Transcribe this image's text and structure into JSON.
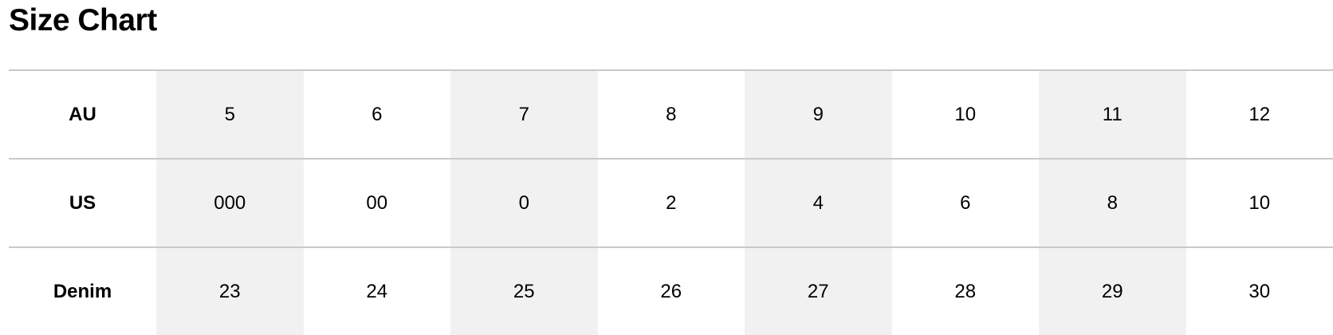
{
  "title": "Size Chart",
  "colors": {
    "shade": "#f1f1f1",
    "divider": "#c9c9c9"
  },
  "rows": [
    {
      "label": "AU",
      "values": [
        "5",
        "6",
        "7",
        "8",
        "9",
        "10",
        "11",
        "12"
      ]
    },
    {
      "label": "US",
      "values": [
        "000",
        "00",
        "0",
        "2",
        "4",
        "6",
        "8",
        "10"
      ]
    },
    {
      "label": "Denim",
      "values": [
        "23",
        "24",
        "25",
        "26",
        "27",
        "28",
        "29",
        "30"
      ]
    }
  ]
}
